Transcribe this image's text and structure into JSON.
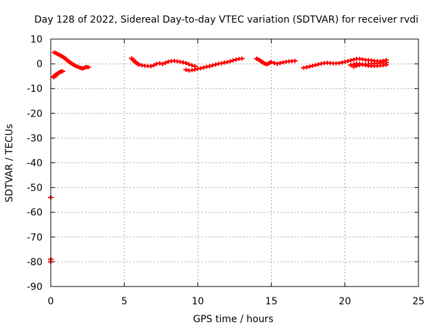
{
  "chart_data": {
    "type": "scatter",
    "title": "Day 128 of 2022, Sidereal Day-to-day VTEC variation (SDTVAR) for receiver rvdi",
    "xlabel": "GPS time / hours",
    "ylabel": "SDTVAR / TECUs",
    "xlim": [
      0,
      25
    ],
    "ylim": [
      -90,
      10
    ],
    "xticks": [
      "0",
      "5",
      "10",
      "15",
      "20",
      "25"
    ],
    "yticks": [
      "10",
      "0",
      "-10",
      "-20",
      "-30",
      "-40",
      "-50",
      "-60",
      "-70",
      "-80",
      "-90"
    ],
    "grid": true,
    "marker_color": "#ff0000",
    "series": [
      {
        "x": [
          0.2,
          0.25,
          0.3,
          0.35,
          0.4,
          0.45,
          0.5,
          0.55,
          0.6,
          0.65,
          0.7,
          0.75,
          0.8,
          0.25,
          0.35,
          0.45,
          0.55,
          0.65,
          0.75,
          0.85,
          0.95,
          1.05,
          1.15,
          1.25,
          1.35,
          1.45,
          1.55,
          1.65,
          1.75,
          1.85,
          1.95,
          2.05,
          2.15,
          2.25,
          2.35,
          2.45,
          2.55,
          5.5,
          5.6,
          5.7,
          5.8,
          5.9,
          6.0,
          6.2,
          6.4,
          6.6,
          6.8,
          7.0,
          7.2,
          7.4,
          7.6,
          7.8,
          8.0,
          8.2,
          8.4,
          8.6,
          8.8,
          9.0,
          9.2,
          9.4,
          9.6,
          9.8,
          9.2,
          9.4,
          9.6,
          9.8,
          10.0,
          10.2,
          10.4,
          10.6,
          10.8,
          11.0,
          11.2,
          11.4,
          11.6,
          11.8,
          12.0,
          12.2,
          12.4,
          12.6,
          12.8,
          13.0,
          14.0,
          14.1,
          14.2,
          14.3,
          14.4,
          14.5,
          14.6,
          14.7,
          14.8,
          14.9,
          15.0,
          15.2,
          15.4,
          15.6,
          15.8,
          16.0,
          16.2,
          16.4,
          16.6,
          17.2,
          17.4,
          17.6,
          17.8,
          18.0,
          18.2,
          18.4,
          18.6,
          18.8,
          19.0,
          19.2,
          19.4,
          19.6,
          19.8,
          20.0,
          20.2,
          20.4,
          20.6,
          20.8,
          21.0,
          21.2,
          21.4,
          21.6,
          21.8,
          22.0,
          22.2,
          22.4,
          22.6,
          22.8,
          20.6,
          20.8,
          21.0,
          21.2,
          21.4,
          21.6,
          21.8,
          22.0,
          22.2,
          22.4,
          22.6,
          22.8,
          20.4,
          20.6,
          20.8,
          21.0,
          21.2,
          21.4,
          21.6,
          21.8,
          22.0,
          22.2,
          22.4,
          22.6,
          22.8,
          0.0,
          0.0,
          0.0
        ],
        "y": [
          -5.5,
          -5.0,
          -4.8,
          -4.5,
          -4.2,
          -4.0,
          -3.8,
          -3.6,
          -3.4,
          -3.3,
          -3.2,
          -3.1,
          -3.0,
          4.6,
          4.3,
          4.0,
          3.7,
          3.4,
          3.1,
          2.7,
          2.3,
          1.8,
          1.3,
          0.8,
          0.4,
          0.0,
          -0.4,
          -0.7,
          -1.0,
          -1.2,
          -1.5,
          -1.7,
          -1.9,
          -1.7,
          -1.4,
          -1.3,
          -1.4,
          2.2,
          1.6,
          1.0,
          0.5,
          0.0,
          -0.3,
          -0.6,
          -0.8,
          -0.9,
          -1.0,
          -0.6,
          0.0,
          0.2,
          -0.1,
          0.4,
          0.9,
          1.1,
          1.2,
          1.0,
          0.8,
          0.6,
          0.3,
          -0.2,
          -0.6,
          -1.0,
          -2.4,
          -2.7,
          -2.6,
          -2.3,
          -2.0,
          -1.8,
          -1.5,
          -1.2,
          -1.0,
          -0.6,
          -0.3,
          0.0,
          0.2,
          0.5,
          0.7,
          1.0,
          1.4,
          1.7,
          2.0,
          2.1,
          2.1,
          1.8,
          1.5,
          1.0,
          0.6,
          0.2,
          0.0,
          -0.2,
          0.1,
          0.5,
          0.7,
          0.3,
          0.0,
          0.3,
          0.6,
          0.8,
          1.0,
          1.1,
          1.2,
          -1.6,
          -1.4,
          -1.1,
          -0.8,
          -0.5,
          -0.2,
          0.1,
          0.3,
          0.4,
          0.3,
          0.2,
          0.2,
          0.3,
          0.5,
          0.8,
          1.1,
          1.4,
          1.7,
          2.0,
          2.0,
          1.8,
          1.6,
          1.5,
          1.4,
          1.2,
          1.1,
          1.0,
          1.2,
          1.5,
          -1.2,
          -0.8,
          -0.5,
          -0.3,
          -0.2,
          -0.1,
          0.0,
          0.1,
          0.2,
          0.3,
          0.4,
          0.5,
          -0.5,
          -0.2,
          0.1,
          0.0,
          -0.3,
          -0.6,
          -0.8,
          -0.9,
          -0.9,
          -0.8,
          -0.7,
          -0.6,
          -0.4,
          -54.0,
          -79.0,
          -80.0
        ]
      }
    ]
  }
}
